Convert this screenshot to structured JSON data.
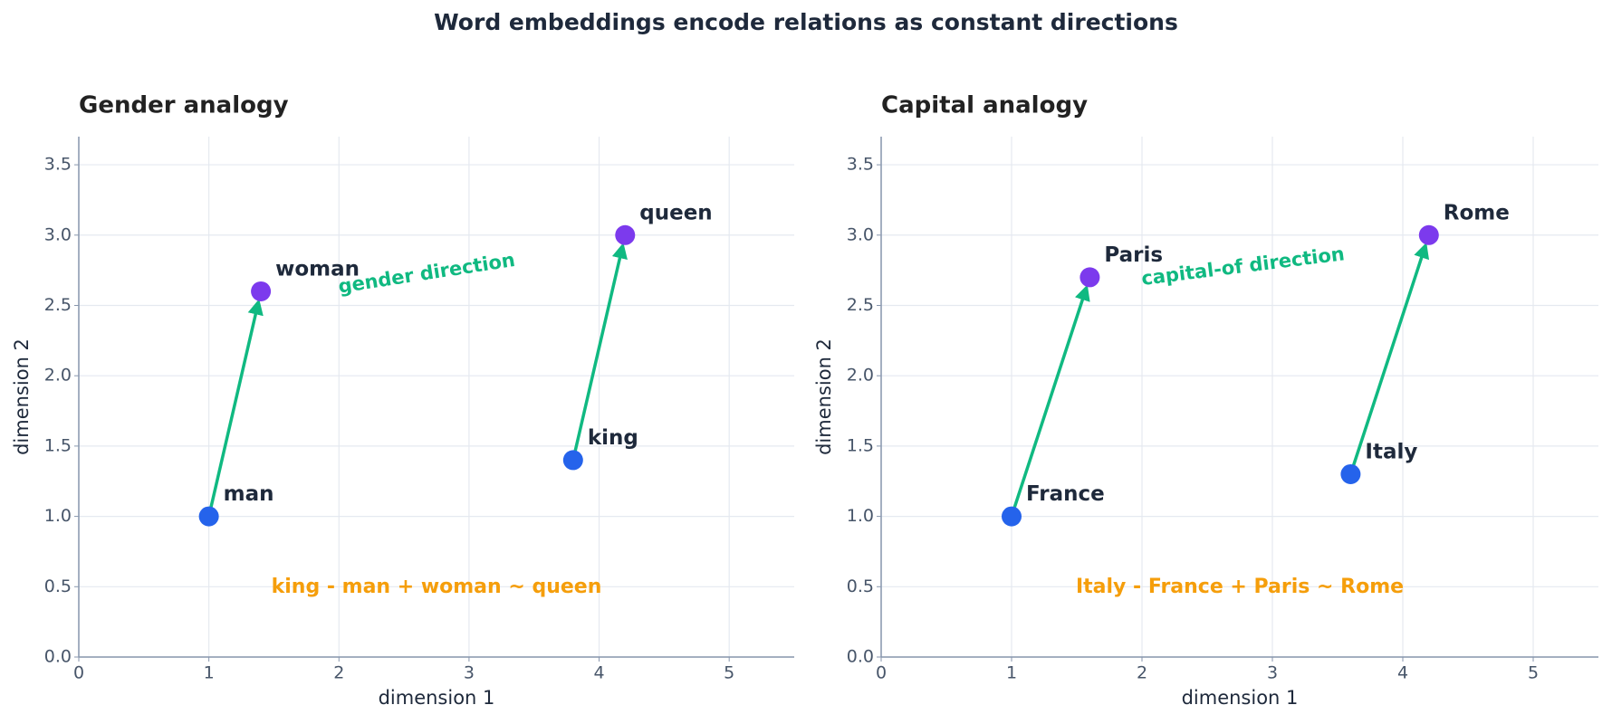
{
  "title": "Word embeddings encode relations as constant directions",
  "chart_data": [
    {
      "type": "scatter",
      "title": "Gender analogy",
      "xlabel": "dimension 1",
      "ylabel": "dimension 2",
      "xlim": [
        0,
        5.5
      ],
      "ylim": [
        0,
        3.7
      ],
      "xticks": [
        0,
        1,
        2,
        3,
        4,
        5
      ],
      "yticks": [
        {
          "value": 0,
          "label": "0.0"
        },
        0.5,
        {
          "value": 1,
          "label": "1.0"
        },
        1.5,
        {
          "value": 2,
          "label": "2.0"
        },
        2.5,
        {
          "value": 3,
          "label": "3.0"
        },
        3.5
      ],
      "grid": true,
      "arrow_color": "#10b981",
      "series": [
        {
          "color": "#2563eb",
          "x": [
            1,
            3.8
          ],
          "values": [
            1,
            1.4
          ],
          "labels": [
            "man",
            "king"
          ]
        },
        {
          "color": "#7c3aed",
          "x": [
            1.4,
            4.2
          ],
          "values": [
            2.6,
            3.0
          ],
          "labels": [
            "woman",
            "queen"
          ]
        }
      ],
      "direction_label": "gender direction",
      "formula": "king - man + woman ~ queen",
      "formula_color": "#f59e0b"
    },
    {
      "type": "scatter",
      "title": "Capital analogy",
      "xlabel": "dimension 1",
      "ylabel": "dimension 2",
      "xlim": [
        0,
        5.5
      ],
      "ylim": [
        0,
        3.7
      ],
      "xticks": [
        0,
        1,
        2,
        3,
        4,
        5
      ],
      "yticks": [
        {
          "value": 0,
          "label": "0.0"
        },
        0.5,
        {
          "value": 1,
          "label": "1.0"
        },
        1.5,
        {
          "value": 2,
          "label": "2.0"
        },
        2.5,
        {
          "value": 3,
          "label": "3.0"
        },
        3.5
      ],
      "grid": true,
      "arrow_color": "#10b981",
      "series": [
        {
          "color": "#2563eb",
          "x": [
            1,
            3.6
          ],
          "values": [
            1,
            1.3
          ],
          "labels": [
            "France",
            "Italy"
          ]
        },
        {
          "color": "#7c3aed",
          "x": [
            1.6,
            4.2
          ],
          "values": [
            2.7,
            3.0
          ],
          "labels": [
            "Paris",
            "Rome"
          ]
        }
      ],
      "direction_label": "capital-of direction",
      "formula": "Italy - France + Paris ~ Rome",
      "formula_color": "#f59e0b"
    }
  ]
}
